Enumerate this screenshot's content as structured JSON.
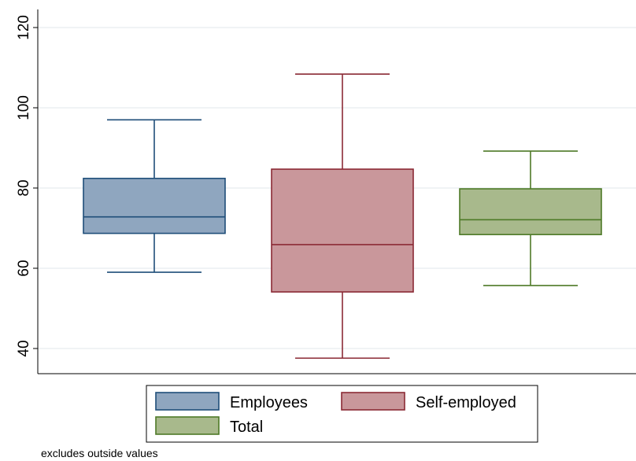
{
  "chart_data": {
    "type": "box",
    "ylim": [
      35,
      124
    ],
    "yticks": [
      40,
      60,
      80,
      100,
      120
    ],
    "grid": true,
    "legend_position": "bottom",
    "series": [
      {
        "name": "Employees",
        "whisker_low": 59,
        "q1": 68.7,
        "median": 72.8,
        "q3": 82.4,
        "whisker_high": 97,
        "fill": "#8fa6bf",
        "stroke": "#1f4e79"
      },
      {
        "name": "Self-employed",
        "whisker_low": 37.6,
        "q1": 54.1,
        "median": 65.9,
        "q3": 84.7,
        "whisker_high": 108.4,
        "fill": "#c9979b",
        "stroke": "#8b2a35"
      },
      {
        "name": "Total",
        "whisker_low": 55.7,
        "q1": 68.4,
        "median": 72.1,
        "q3": 79.8,
        "whisker_high": 89.2,
        "fill": "#a8b98c",
        "stroke": "#4e7a27"
      }
    ],
    "note": "excludes outside values"
  }
}
